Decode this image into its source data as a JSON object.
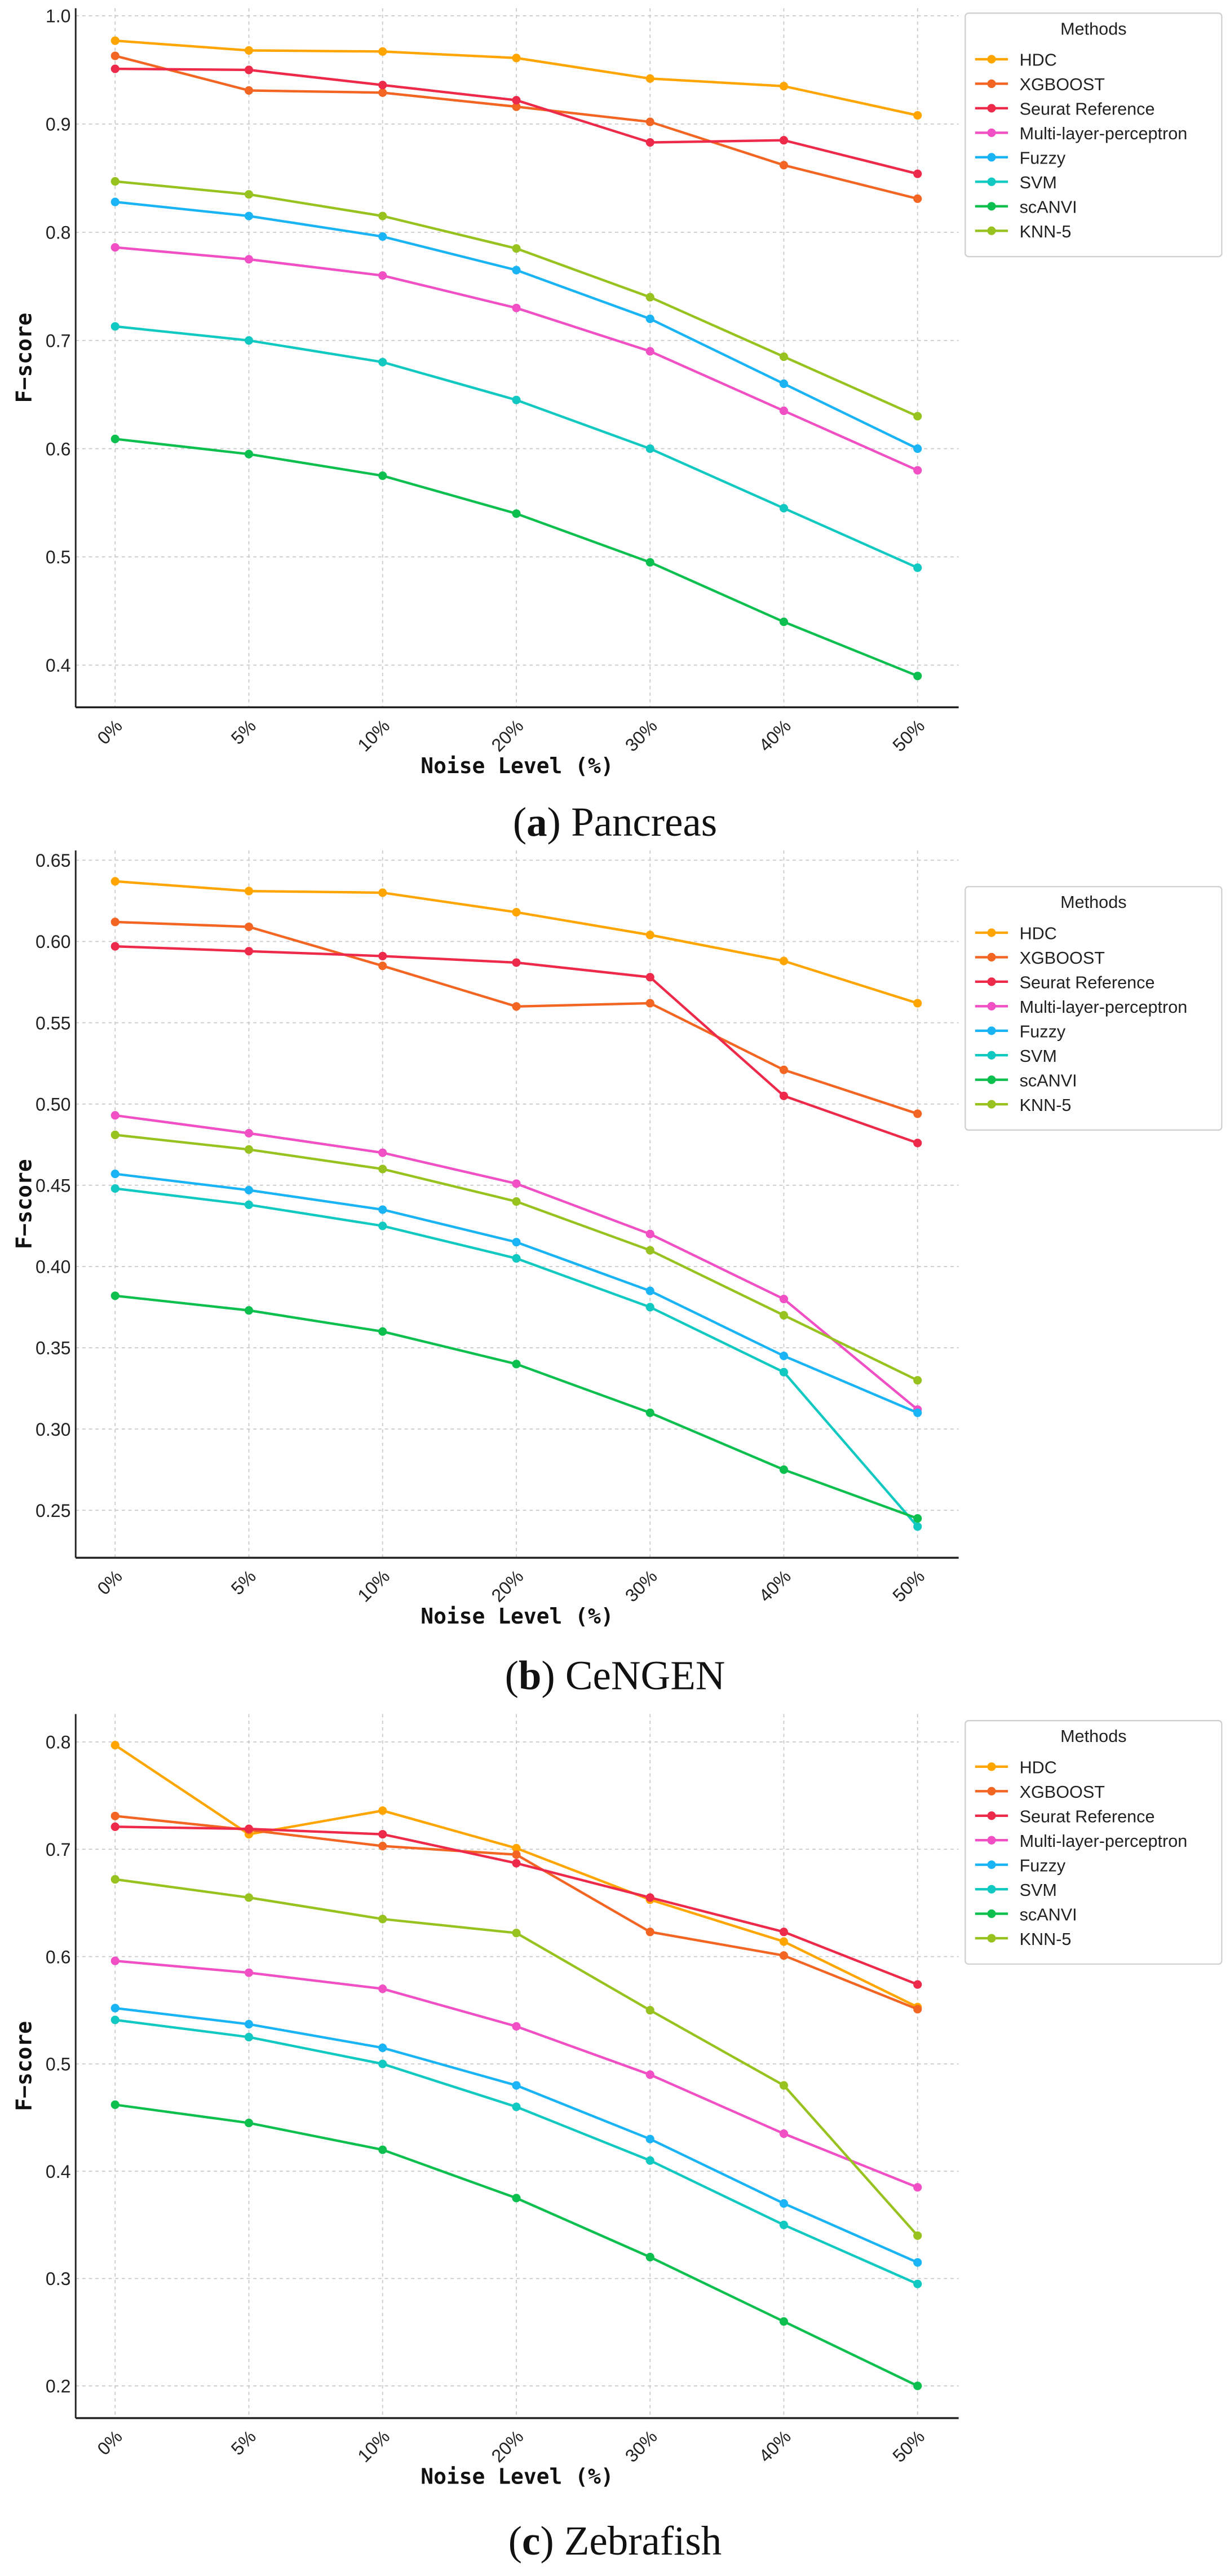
{
  "chart_data": [
    {
      "type": "line",
      "caption_letter": "a",
      "caption_text": "Pancreas",
      "xlabel": "Noise Level (%)",
      "ylabel": "F−score",
      "legend_title": "Methods",
      "legend_position": "top-right outside",
      "grid": true,
      "x": [
        "0%",
        "5%",
        "10%",
        "20%",
        "30%",
        "40%",
        "50%"
      ],
      "ylim": [
        0.361,
        1.007
      ],
      "yticks": [
        0.4,
        0.5,
        0.6,
        0.7,
        0.8,
        0.9,
        1.0
      ],
      "ytick_labels": [
        "0.4",
        "0.5",
        "0.6",
        "0.7",
        "0.8",
        "0.9",
        "1.0"
      ],
      "series": [
        {
          "name": "HDC",
          "color": "#ffa500",
          "values": [
            0.977,
            0.968,
            0.967,
            0.961,
            0.942,
            0.935,
            0.908
          ]
        },
        {
          "name": "XGBOOST",
          "color": "#f26522",
          "values": [
            0.963,
            0.931,
            0.929,
            0.916,
            0.902,
            0.862,
            0.831
          ]
        },
        {
          "name": "Seurat Reference",
          "color": "#ee2a4a",
          "values": [
            0.951,
            0.95,
            0.936,
            0.922,
            0.883,
            0.885,
            0.854
          ]
        },
        {
          "name": "Multi-layer-perceptron",
          "color": "#f050c4",
          "values": [
            0.786,
            0.775,
            0.76,
            0.73,
            0.69,
            0.635,
            0.58
          ]
        },
        {
          "name": "Fuzzy",
          "color": "#1ab4f5",
          "values": [
            0.828,
            0.815,
            0.796,
            0.765,
            0.72,
            0.66,
            0.6
          ]
        },
        {
          "name": "SVM",
          "color": "#12c9c1",
          "values": [
            0.713,
            0.7,
            0.68,
            0.645,
            0.6,
            0.545,
            0.49
          ]
        },
        {
          "name": "scANVI",
          "color": "#0dbf4f",
          "values": [
            0.609,
            0.595,
            0.575,
            0.54,
            0.495,
            0.44,
            0.39
          ]
        },
        {
          "name": "KNN-5",
          "color": "#98c21f",
          "values": [
            0.847,
            0.835,
            0.815,
            0.785,
            0.74,
            0.685,
            0.63
          ]
        }
      ]
    },
    {
      "type": "line",
      "caption_letter": "b",
      "caption_text": "CeNGEN",
      "xlabel": "Noise Level (%)",
      "ylabel": "F−score",
      "legend_title": "Methods",
      "legend_position": "top-right outside",
      "grid": true,
      "x": [
        "0%",
        "5%",
        "10%",
        "20%",
        "30%",
        "40%",
        "50%"
      ],
      "ylim": [
        0.2208,
        0.656
      ],
      "yticks": [
        0.25,
        0.3,
        0.35,
        0.4,
        0.45,
        0.5,
        0.55,
        0.6,
        0.65
      ],
      "ytick_labels": [
        "0.25",
        "0.30",
        "0.35",
        "0.40",
        "0.45",
        "0.50",
        "0.55",
        "0.60",
        "0.65"
      ],
      "series": [
        {
          "name": "HDC",
          "color": "#ffa500",
          "values": [
            0.637,
            0.631,
            0.63,
            0.618,
            0.604,
            0.588,
            0.562
          ]
        },
        {
          "name": "XGBOOST",
          "color": "#f26522",
          "values": [
            0.612,
            0.609,
            0.585,
            0.56,
            0.562,
            0.521,
            0.494
          ]
        },
        {
          "name": "Seurat Reference",
          "color": "#ee2a4a",
          "values": [
            0.597,
            0.594,
            0.591,
            0.587,
            0.578,
            0.505,
            0.476
          ]
        },
        {
          "name": "Multi-layer-perceptron",
          "color": "#f050c4",
          "values": [
            0.493,
            0.482,
            0.47,
            0.451,
            0.42,
            0.38,
            0.312
          ]
        },
        {
          "name": "Fuzzy",
          "color": "#1ab4f5",
          "values": [
            0.457,
            0.447,
            0.435,
            0.415,
            0.385,
            0.345,
            0.31
          ]
        },
        {
          "name": "SVM",
          "color": "#12c9c1",
          "values": [
            0.448,
            0.438,
            0.425,
            0.405,
            0.375,
            0.335,
            0.24
          ]
        },
        {
          "name": "scANVI",
          "color": "#0dbf4f",
          "values": [
            0.382,
            0.373,
            0.36,
            0.34,
            0.31,
            0.275,
            0.245
          ]
        },
        {
          "name": "KNN-5",
          "color": "#98c21f",
          "values": [
            0.481,
            0.472,
            0.46,
            0.44,
            0.41,
            0.37,
            0.33
          ]
        }
      ]
    },
    {
      "type": "line",
      "caption_letter": "c",
      "caption_text": "Zebrafish",
      "xlabel": "Noise Level (%)",
      "ylabel": "F−score",
      "legend_title": "Methods",
      "legend_position": "top-right outside",
      "grid": true,
      "x": [
        "0%",
        "5%",
        "10%",
        "20%",
        "30%",
        "40%",
        "50%"
      ],
      "ylim": [
        0.17,
        0.826
      ],
      "yticks": [
        0.2,
        0.3,
        0.4,
        0.5,
        0.6,
        0.7,
        0.8
      ],
      "ytick_labels": [
        "0.2",
        "0.3",
        "0.4",
        "0.5",
        "0.6",
        "0.7",
        "0.8"
      ],
      "series": [
        {
          "name": "HDC",
          "color": "#ffa500",
          "values": [
            0.797,
            0.714,
            0.736,
            0.701,
            0.653,
            0.614,
            0.553
          ]
        },
        {
          "name": "XGBOOST",
          "color": "#f26522",
          "values": [
            0.731,
            0.718,
            0.703,
            0.695,
            0.623,
            0.601,
            0.551
          ]
        },
        {
          "name": "Seurat Reference",
          "color": "#ee2a4a",
          "values": [
            0.721,
            0.719,
            0.714,
            0.687,
            0.655,
            0.623,
            0.574
          ]
        },
        {
          "name": "Multi-layer-perceptron",
          "color": "#f050c4",
          "values": [
            0.596,
            0.585,
            0.57,
            0.535,
            0.49,
            0.435,
            0.385
          ]
        },
        {
          "name": "Fuzzy",
          "color": "#1ab4f5",
          "values": [
            0.552,
            0.537,
            0.515,
            0.48,
            0.43,
            0.37,
            0.315
          ]
        },
        {
          "name": "SVM",
          "color": "#12c9c1",
          "values": [
            0.541,
            0.525,
            0.5,
            0.46,
            0.41,
            0.35,
            0.295
          ]
        },
        {
          "name": "scANVI",
          "color": "#0dbf4f",
          "values": [
            0.462,
            0.445,
            0.42,
            0.375,
            0.32,
            0.26,
            0.2
          ]
        },
        {
          "name": "KNN-5",
          "color": "#98c21f",
          "values": [
            0.672,
            0.655,
            0.635,
            0.622,
            0.55,
            0.48,
            0.34
          ]
        }
      ]
    }
  ]
}
